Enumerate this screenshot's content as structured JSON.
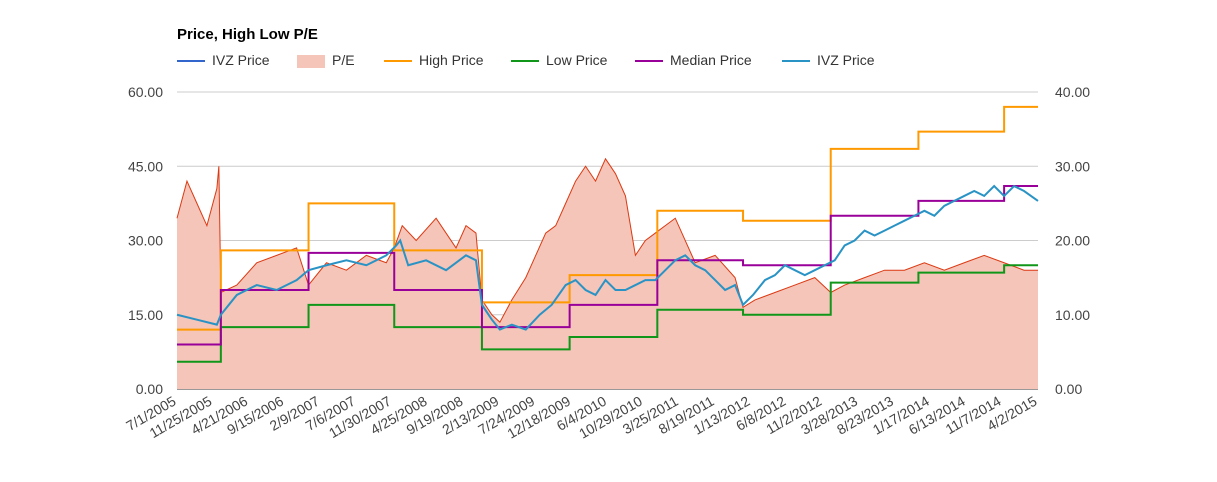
{
  "chart_data": {
    "type": "line",
    "title": "Price, High Low P/E",
    "legend": [
      {
        "name": "IVZ Price",
        "color": "#3366cc",
        "kind": "line"
      },
      {
        "name": "P/E",
        "color": "#f4c5b8",
        "kind": "area"
      },
      {
        "name": "High Price",
        "color": "#ff9900",
        "kind": "line"
      },
      {
        "name": "Low Price",
        "color": "#109618",
        "kind": "line"
      },
      {
        "name": "Median Price",
        "color": "#990099",
        "kind": "line"
      },
      {
        "name": "IVZ Price",
        "color": "#2a93c5",
        "kind": "line"
      }
    ],
    "legend_position": "top",
    "grid": true,
    "x_categories": [
      "7/1/2005",
      "11/25/2005",
      "4/21/2006",
      "9/15/2006",
      "2/9/2007",
      "7/6/2007",
      "11/30/2007",
      "4/25/2008",
      "9/19/2008",
      "2/13/2009",
      "7/24/2009",
      "12/18/2009",
      "6/4/2010",
      "10/29/2010",
      "3/25/2011",
      "8/19/2011",
      "1/13/2012",
      "6/8/2012",
      "11/2/2012",
      "3/28/2013",
      "8/23/2013",
      "1/17/2014",
      "6/13/2014",
      "11/7/2014",
      "4/2/2015"
    ],
    "y_left": {
      "min": 0,
      "max": 60,
      "ticks": [
        "0.00",
        "15.00",
        "30.00",
        "45.00",
        "60.00"
      ]
    },
    "y_right": {
      "min": 0,
      "max": 40,
      "ticks": [
        "0.00",
        "10.00",
        "20.00",
        "30.00",
        "40.00"
      ]
    },
    "high_price": [
      [
        0,
        12
      ],
      [
        2.2,
        12
      ],
      [
        2.2,
        28
      ],
      [
        6.6,
        28
      ],
      [
        6.6,
        37.5
      ],
      [
        10.9,
        37.5
      ],
      [
        10.9,
        28
      ],
      [
        15.3,
        28
      ],
      [
        15.3,
        17.5
      ],
      [
        19.7,
        17.5
      ],
      [
        19.7,
        23
      ],
      [
        24.1,
        23
      ],
      [
        24.1,
        36
      ],
      [
        28.4,
        36
      ],
      [
        28.4,
        34
      ],
      [
        32.8,
        34
      ],
      [
        32.8,
        48.5
      ],
      [
        37.2,
        48.5
      ],
      [
        37.2,
        52
      ],
      [
        41.5,
        52
      ],
      [
        41.5,
        57
      ],
      [
        43.2,
        57
      ]
    ],
    "low_price": [
      [
        0,
        5.5
      ],
      [
        2.2,
        5.5
      ],
      [
        2.2,
        12.5
      ],
      [
        6.6,
        12.5
      ],
      [
        6.6,
        17
      ],
      [
        10.9,
        17
      ],
      [
        10.9,
        12.5
      ],
      [
        15.3,
        12.5
      ],
      [
        15.3,
        8
      ],
      [
        19.7,
        8
      ],
      [
        19.7,
        10.5
      ],
      [
        24.1,
        10.5
      ],
      [
        24.1,
        16
      ],
      [
        28.4,
        16
      ],
      [
        28.4,
        15
      ],
      [
        32.8,
        15
      ],
      [
        32.8,
        21.5
      ],
      [
        37.2,
        21.5
      ],
      [
        37.2,
        23.5
      ],
      [
        41.5,
        23.5
      ],
      [
        41.5,
        25
      ],
      [
        43.2,
        25
      ]
    ],
    "median_price": [
      [
        0,
        9
      ],
      [
        2.2,
        9
      ],
      [
        2.2,
        20
      ],
      [
        6.6,
        20
      ],
      [
        6.6,
        27.5
      ],
      [
        10.9,
        27.5
      ],
      [
        10.9,
        20
      ],
      [
        15.3,
        20
      ],
      [
        15.3,
        12.5
      ],
      [
        19.7,
        12.5
      ],
      [
        19.7,
        17
      ],
      [
        24.1,
        17
      ],
      [
        24.1,
        26
      ],
      [
        28.4,
        26
      ],
      [
        28.4,
        25
      ],
      [
        32.8,
        25
      ],
      [
        32.8,
        35
      ],
      [
        37.2,
        35
      ],
      [
        37.2,
        38
      ],
      [
        41.5,
        38
      ],
      [
        41.5,
        41
      ],
      [
        43.2,
        41
      ]
    ],
    "ivz_price": [
      [
        0,
        15
      ],
      [
        1,
        14
      ],
      [
        2,
        13
      ],
      [
        2.2,
        15
      ],
      [
        3,
        19
      ],
      [
        4,
        21
      ],
      [
        5,
        20
      ],
      [
        6,
        22
      ],
      [
        6.6,
        24
      ],
      [
        7.5,
        25
      ],
      [
        8.5,
        26
      ],
      [
        9.5,
        25
      ],
      [
        10.5,
        27
      ],
      [
        11,
        29
      ],
      [
        11.2,
        30
      ],
      [
        11.6,
        25
      ],
      [
        12.5,
        26
      ],
      [
        13.5,
        24
      ],
      [
        14.5,
        27
      ],
      [
        15,
        26
      ],
      [
        15.3,
        17
      ],
      [
        15.8,
        14
      ],
      [
        16.2,
        12
      ],
      [
        16.8,
        13
      ],
      [
        17.5,
        12
      ],
      [
        18.2,
        15
      ],
      [
        18.8,
        17
      ],
      [
        19.5,
        21
      ],
      [
        20,
        22
      ],
      [
        20.5,
        20
      ],
      [
        21,
        19
      ],
      [
        21.5,
        22
      ],
      [
        22,
        20
      ],
      [
        22.5,
        20
      ],
      [
        23,
        21
      ],
      [
        23.5,
        22
      ],
      [
        24,
        22
      ],
      [
        24.5,
        24
      ],
      [
        25,
        26
      ],
      [
        25.5,
        27
      ],
      [
        26,
        25
      ],
      [
        26.5,
        24
      ],
      [
        27,
        22
      ],
      [
        27.5,
        20
      ],
      [
        28,
        21
      ],
      [
        28.4,
        17
      ],
      [
        28.9,
        19
      ],
      [
        29.5,
        22
      ],
      [
        30,
        23
      ],
      [
        30.5,
        25
      ],
      [
        31,
        24
      ],
      [
        31.5,
        23
      ],
      [
        32,
        24
      ],
      [
        32.5,
        25
      ],
      [
        33,
        26
      ],
      [
        33.5,
        29
      ],
      [
        34,
        30
      ],
      [
        34.5,
        32
      ],
      [
        35,
        31
      ],
      [
        35.5,
        32
      ],
      [
        36,
        33
      ],
      [
        36.5,
        34
      ],
      [
        37,
        35
      ],
      [
        37.5,
        36
      ],
      [
        38,
        35
      ],
      [
        38.5,
        37
      ],
      [
        39,
        38
      ],
      [
        39.5,
        39
      ],
      [
        40,
        40
      ],
      [
        40.5,
        39
      ],
      [
        41,
        41
      ],
      [
        41.5,
        39
      ],
      [
        42,
        41
      ],
      [
        42.5,
        40
      ],
      [
        43.2,
        38
      ]
    ],
    "pe_ratio": [
      [
        0,
        23
      ],
      [
        0.5,
        28
      ],
      [
        1,
        25
      ],
      [
        1.5,
        22
      ],
      [
        2,
        27
      ],
      [
        2.1,
        30
      ],
      [
        2.2,
        13
      ],
      [
        3,
        14
      ],
      [
        4,
        17
      ],
      [
        5,
        18
      ],
      [
        6,
        19
      ],
      [
        6.6,
        14
      ],
      [
        7.5,
        17
      ],
      [
        8.5,
        16
      ],
      [
        9.5,
        18
      ],
      [
        10.5,
        17
      ],
      [
        10.9,
        19
      ],
      [
        11.3,
        22
      ],
      [
        12,
        20
      ],
      [
        13,
        23
      ],
      [
        14,
        19
      ],
      [
        14.5,
        22
      ],
      [
        15,
        21
      ],
      [
        15.3,
        12
      ],
      [
        15.8,
        10
      ],
      [
        16.2,
        9
      ],
      [
        16.8,
        12
      ],
      [
        17.5,
        15
      ],
      [
        18,
        18
      ],
      [
        18.5,
        21
      ],
      [
        19,
        22
      ],
      [
        19.5,
        25
      ],
      [
        20,
        28
      ],
      [
        20.5,
        30
      ],
      [
        21,
        28
      ],
      [
        21.5,
        31
      ],
      [
        22,
        29
      ],
      [
        22.5,
        26
      ],
      [
        23,
        18
      ],
      [
        23.5,
        20
      ],
      [
        24,
        21
      ],
      [
        24.5,
        22
      ],
      [
        25,
        23
      ],
      [
        26,
        17
      ],
      [
        27,
        18
      ],
      [
        28,
        15
      ],
      [
        28.4,
        11
      ],
      [
        29,
        12
      ],
      [
        30,
        13
      ],
      [
        31,
        14
      ],
      [
        32,
        15
      ],
      [
        32.8,
        13
      ],
      [
        33.5,
        14
      ],
      [
        34.5,
        15
      ],
      [
        35.5,
        16
      ],
      [
        36.5,
        16
      ],
      [
        37.5,
        17
      ],
      [
        38.5,
        16
      ],
      [
        39.5,
        17
      ],
      [
        40.5,
        18
      ],
      [
        41.5,
        17
      ],
      [
        42.5,
        16
      ],
      [
        43.2,
        16
      ]
    ]
  }
}
